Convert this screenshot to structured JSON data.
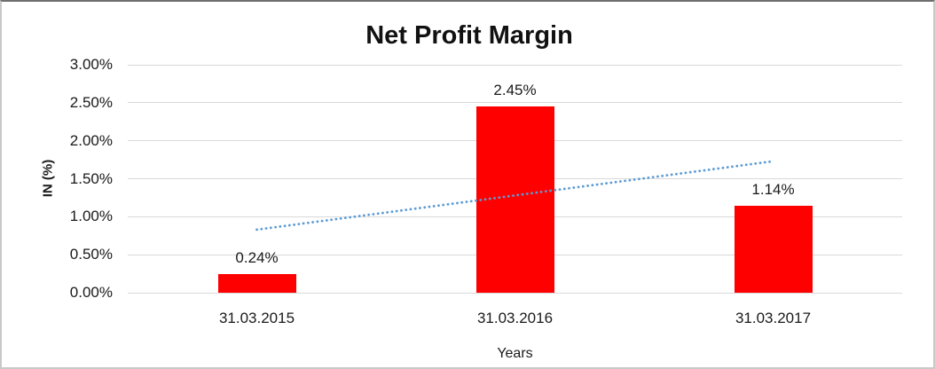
{
  "window": {
    "background": "#ffffff",
    "border_color": "#c9c9c9"
  },
  "chart_data": {
    "type": "bar",
    "title": "Net Profit Margin",
    "xlabel": "Years",
    "ylabel": "IN (%)",
    "categories": [
      "31.03.2015",
      "31.03.2016",
      "31.03.2017"
    ],
    "series": [
      {
        "name": "Net Profit Margin",
        "values": [
          0.24,
          2.45,
          1.14
        ]
      }
    ],
    "data_labels": [
      "0.24%",
      "2.45%",
      "1.14%"
    ],
    "y_axis": {
      "min": 0,
      "max": 3,
      "step": 0.5,
      "tick_labels": [
        "0.00%",
        "0.50%",
        "1.00%",
        "1.50%",
        "2.00%",
        "2.50%",
        "3.00%"
      ]
    },
    "grid": true,
    "legend": false,
    "bar_color": "#ff0000",
    "gridline_color": "#d9d9d9",
    "text_color": "#1a1a1a",
    "trendline": {
      "type": "linear",
      "style": "dotted",
      "color": "#5b9bd5",
      "start_value": 0.83,
      "end_value": 1.73
    }
  }
}
